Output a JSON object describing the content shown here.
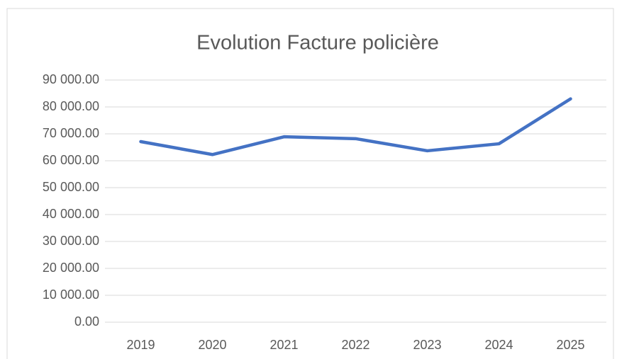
{
  "chart_data": {
    "type": "line",
    "title": "Evolution Facture policière",
    "categories": [
      "2019",
      "2020",
      "2021",
      "2022",
      "2023",
      "2024",
      "2025"
    ],
    "series": [
      {
        "name": "Facture policière",
        "color": "#4472c4",
        "values": [
          67100,
          62300,
          68900,
          68200,
          63700,
          66300,
          83000
        ]
      }
    ],
    "ylim": [
      0,
      90000
    ],
    "yticks": [
      {
        "value": 0,
        "label": "0.00"
      },
      {
        "value": 10000,
        "label": "10 000.00"
      },
      {
        "value": 20000,
        "label": "20 000.00"
      },
      {
        "value": 30000,
        "label": "30 000.00"
      },
      {
        "value": 40000,
        "label": "40 000.00"
      },
      {
        "value": 50000,
        "label": "50 000.00"
      },
      {
        "value": 60000,
        "label": "60 000.00"
      },
      {
        "value": 70000,
        "label": "70 000.00"
      },
      {
        "value": 80000,
        "label": "80 000.00"
      },
      {
        "value": 90000,
        "label": "90 000.00"
      }
    ],
    "grid": true
  }
}
